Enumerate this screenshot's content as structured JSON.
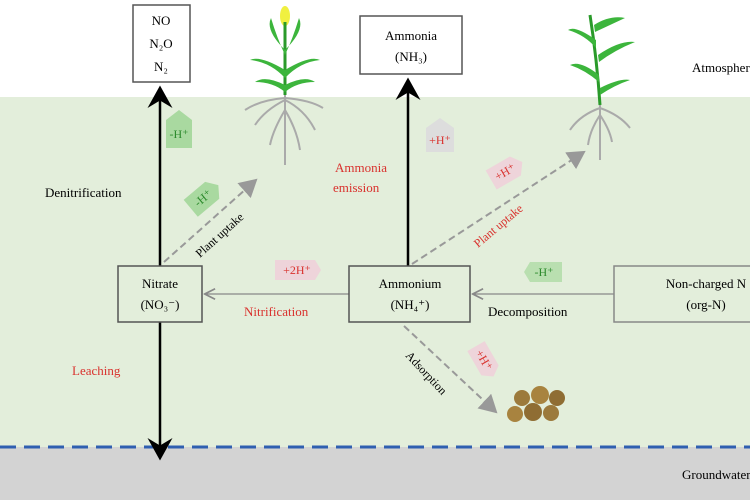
{
  "zones": {
    "atmosphere": "Atmosphere",
    "groundwater": "Groundwater"
  },
  "boxes": {
    "gases": [
      "NO",
      "N₂O",
      "N₂"
    ],
    "ammonia": [
      "Ammonia",
      "(NH₃)"
    ],
    "nitrate": [
      "Nitrate",
      "(NO₃⁻)"
    ],
    "ammonium": [
      "Ammonium",
      "(NH₄⁺)"
    ],
    "organic": [
      "Non-charged N",
      "(org-N)"
    ]
  },
  "processes": {
    "denitrification": "Denitrification",
    "leaching": "Leaching",
    "nitrification": "Nitrification",
    "decomposition": "Decomposition",
    "ammonia_emission": [
      "Ammonia",
      "emission"
    ],
    "adsorption": "Adsorption",
    "plant_uptake_nitrate": "Plant uptake",
    "plant_uptake_ammonium": "Plant uptake"
  },
  "tags": {
    "denitrification": "-H⁺",
    "uptake_nitrate": "-H⁺",
    "emission": "+H⁺",
    "uptake_ammonium": "+H⁺",
    "nitrification": "+2H⁺",
    "decomposition": "-H⁺",
    "adsorption": "+H⁺"
  },
  "colors": {
    "soil": "#e3eedb",
    "groundwater": "#d3d3d3",
    "water_table": "#2f5fb0",
    "red_label": "#d9322e",
    "green_tag": "#a9d9a0",
    "pink_tag": "#eed4da"
  }
}
